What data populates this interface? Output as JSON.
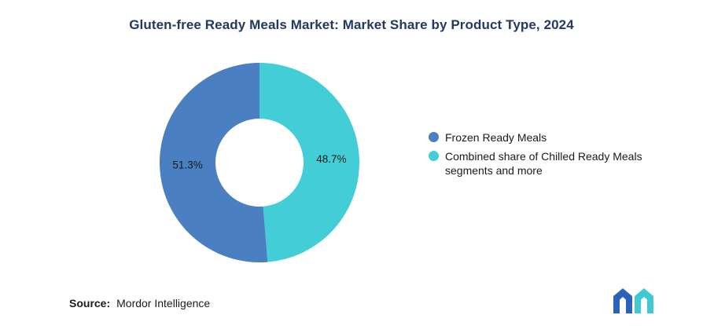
{
  "title": "Gluten-free Ready Meals Market: Market Share by Product Type, 2024",
  "colors": {
    "title_text": "#223A5E",
    "body_text": "#1A1A1A",
    "label_text": "#1A1A1A",
    "background": "#FFFFFF"
  },
  "chart_data": {
    "type": "pie",
    "subtype": "donut",
    "title": "Gluten-free Ready Meals Market: Market Share by Product Type, 2024",
    "segments": [
      {
        "label": "Frozen Ready Meals",
        "value": 51.3,
        "display": "51.3%",
        "color": "#4A7FC1"
      },
      {
        "label": "Combined share of Chilled Ready Meals segments and more",
        "value": 48.7,
        "display": "48.7%",
        "color": "#43CDD6"
      }
    ],
    "start_angle_deg": -90,
    "direction": "clockwise",
    "inner_radius_ratio": 0.44,
    "legend_position": "right",
    "data_labels": "inside"
  },
  "footer": {
    "source_label": "Source:",
    "source_value": "Mordor Intelligence",
    "logo_name": "mordor-intelligence-logo",
    "logo_blue": "#2B63B8",
    "logo_teal": "#3FC9D1"
  }
}
